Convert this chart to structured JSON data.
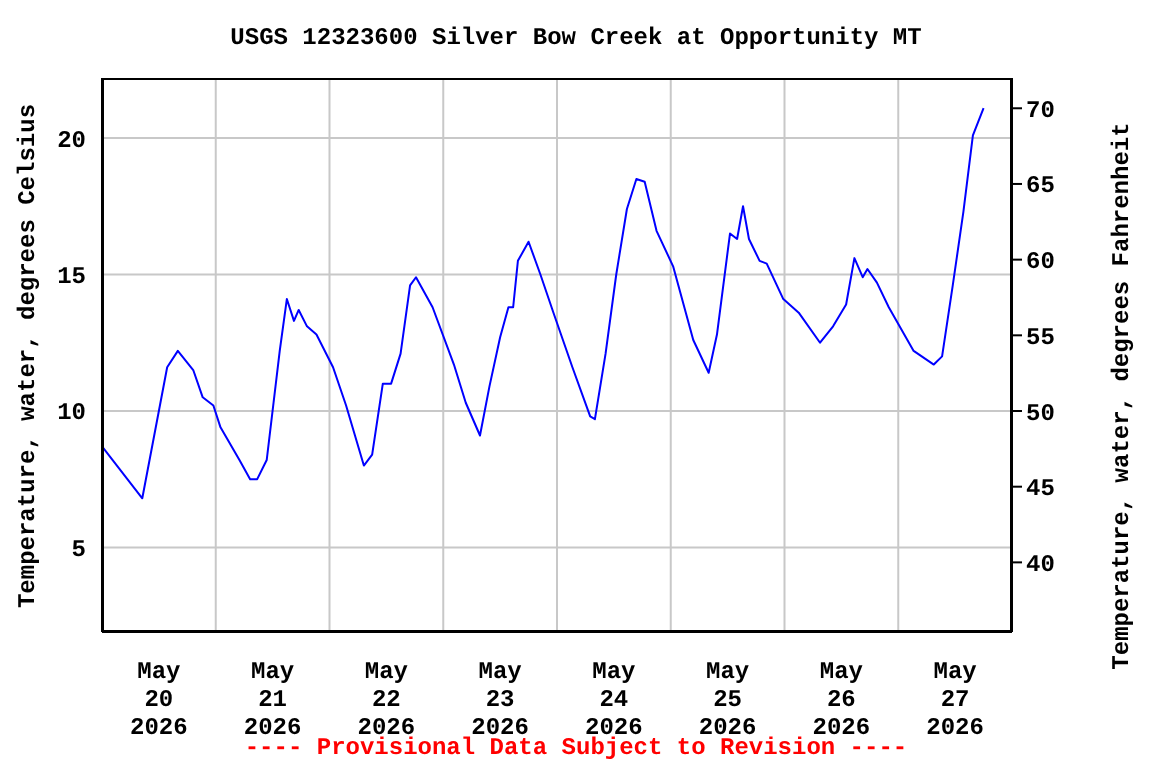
{
  "chart_data": {
    "type": "line",
    "title": "USGS 12323600 Silver Bow Creek at Opportunity MT",
    "ylabel": "Temperature, water, degrees Celsius",
    "y2label": "Temperature, water, degrees Fahrenheit",
    "annotations": [
      "---- Provisional Data Subject to Revision ----"
    ],
    "xlim": [
      "2026-05-20T00:00",
      "2026-05-28T00:00"
    ],
    "xticks": [
      {
        "value": "2026-05-20T12:00",
        "label": "May\n20\n2026"
      },
      {
        "value": "2026-05-21T00:00",
        "label": null
      },
      {
        "value": "2026-05-21T12:00",
        "label": "May\n21\n2026"
      },
      {
        "value": "2026-05-22T00:00",
        "label": null
      },
      {
        "value": "2026-05-22T12:00",
        "label": "May\n22\n2026"
      },
      {
        "value": "2026-05-23T00:00",
        "label": null
      },
      {
        "value": "2026-05-23T12:00",
        "label": "May\n23\n2026"
      },
      {
        "value": "2026-05-24T00:00",
        "label": null
      },
      {
        "value": "2026-05-24T12:00",
        "label": "May\n24\n2026"
      },
      {
        "value": "2026-05-25T00:00",
        "label": null
      },
      {
        "value": "2026-05-25T12:00",
        "label": "May\n25\n2026"
      },
      {
        "value": "2026-05-26T00:00",
        "label": null
      },
      {
        "value": "2026-05-26T12:00",
        "label": "May\n26\n2026"
      },
      {
        "value": "2026-05-27T00:00",
        "label": null
      },
      {
        "value": "2026-05-27T12:00",
        "label": "May\n27\n2026"
      }
    ],
    "ylim": [
      1.9,
      22.2
    ],
    "yticks": [
      5,
      10,
      15,
      20
    ],
    "y2lim": [
      35.4,
      72.0
    ],
    "y2ticks": [
      40,
      45,
      50,
      55,
      60,
      65,
      70
    ],
    "grid": true,
    "marker": "none",
    "line_style": "solid",
    "x": [
      "2026-05-20T00:00",
      "2026-05-20T08:30",
      "2026-05-20T13:45",
      "2026-05-20T16:00",
      "2026-05-20T19:15",
      "2026-05-20T21:15",
      "2026-05-20T23:30",
      "2026-05-21T01:00",
      "2026-05-21T05:00",
      "2026-05-21T07:15",
      "2026-05-21T08:45",
      "2026-05-21T10:45",
      "2026-05-21T13:30",
      "2026-05-21T15:00",
      "2026-05-21T16:30",
      "2026-05-21T17:30",
      "2026-05-21T19:15",
      "2026-05-21T21:15",
      "2026-05-22T00:45",
      "2026-05-22T03:30",
      "2026-05-22T07:15",
      "2026-05-22T09:00",
      "2026-05-22T11:15",
      "2026-05-22T13:00",
      "2026-05-22T15:00",
      "2026-05-22T17:00",
      "2026-05-22T18:15",
      "2026-05-22T21:45",
      "2026-05-23T02:15",
      "2026-05-23T04:45",
      "2026-05-23T07:45",
      "2026-05-23T09:45",
      "2026-05-23T12:00",
      "2026-05-23T13:45",
      "2026-05-23T14:45",
      "2026-05-23T15:45",
      "2026-05-23T18:00",
      "2026-05-23T20:30",
      "2026-05-23T23:15",
      "2026-05-24T03:15",
      "2026-05-24T07:00",
      "2026-05-24T08:00",
      "2026-05-24T10:15",
      "2026-05-24T12:30",
      "2026-05-24T14:45",
      "2026-05-24T16:45",
      "2026-05-24T18:30",
      "2026-05-24T21:00",
      "2026-05-25T00:30",
      "2026-05-25T04:45",
      "2026-05-25T08:00",
      "2026-05-25T09:45",
      "2026-05-25T12:30",
      "2026-05-25T14:00",
      "2026-05-25T15:15",
      "2026-05-25T16:30",
      "2026-05-25T18:45",
      "2026-05-25T20:15",
      "2026-05-25T23:45",
      "2026-05-26T03:00",
      "2026-05-26T07:30",
      "2026-05-26T10:15",
      "2026-05-26T13:00",
      "2026-05-26T14:45",
      "2026-05-26T16:30",
      "2026-05-26T17:30",
      "2026-05-26T19:30",
      "2026-05-26T22:00",
      "2026-05-27T03:15",
      "2026-05-27T07:30",
      "2026-05-27T09:15",
      "2026-05-27T11:30",
      "2026-05-27T13:45",
      "2026-05-27T15:45",
      "2026-05-27T18:00"
    ],
    "series": [
      {
        "color": "#0000ff",
        "values": [
          8.7,
          6.8,
          11.6,
          12.2,
          11.5,
          10.5,
          10.2,
          9.4,
          8.2,
          7.5,
          7.5,
          8.2,
          12.2,
          14.1,
          13.3,
          13.7,
          13.1,
          12.8,
          11.6,
          10.2,
          8.0,
          8.4,
          11.0,
          11.0,
          12.1,
          14.6,
          14.9,
          13.8,
          11.7,
          10.3,
          9.1,
          10.9,
          12.7,
          13.8,
          13.8,
          15.5,
          16.2,
          15.0,
          13.6,
          11.6,
          9.8,
          9.7,
          12.1,
          15.0,
          17.4,
          18.5,
          18.4,
          16.6,
          15.3,
          12.6,
          11.4,
          12.8,
          16.5,
          16.3,
          17.5,
          16.3,
          15.5,
          15.4,
          14.1,
          13.6,
          12.5,
          13.1,
          13.9,
          15.6,
          14.9,
          15.2,
          14.7,
          13.8,
          12.2,
          11.7,
          12.0,
          14.6,
          17.3,
          20.1,
          21.1
        ]
      }
    ]
  }
}
